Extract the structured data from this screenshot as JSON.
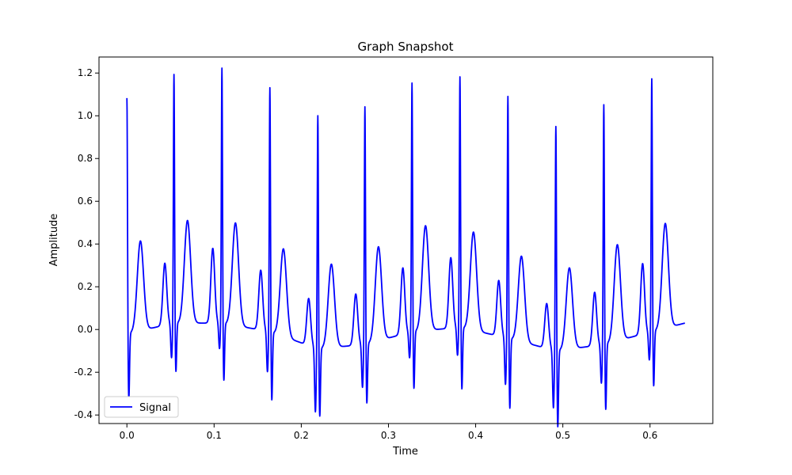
{
  "chart_data": {
    "type": "line",
    "title": "Graph Snapshot",
    "xlabel": "Time",
    "ylabel": "Amplitude",
    "xlim": [
      -0.032,
      0.672
    ],
    "ylim": [
      -0.44,
      1.275
    ],
    "xticks": [
      0.0,
      0.1,
      0.2,
      0.3,
      0.4,
      0.5,
      0.6
    ],
    "yticks": [
      -0.4,
      -0.2,
      0.0,
      0.2,
      0.4,
      0.6,
      0.8,
      1.0,
      1.2
    ],
    "grid": false,
    "legend": {
      "position": "lower-left",
      "entries": [
        "Signal"
      ]
    },
    "series": [
      {
        "name": "Signal",
        "color": "#0000ff",
        "beats": [
          {
            "t": 0.0,
            "r": 1.11,
            "s": -0.31,
            "p": 0.0,
            "q": 0.0,
            "tw": 0.42,
            "base": -0.02
          },
          {
            "t": 0.054,
            "r": 1.17,
            "s": -0.23,
            "p": 0.29,
            "q": -0.16,
            "tw": 0.48,
            "base": 0.03
          },
          {
            "t": 0.109,
            "r": 1.2,
            "s": -0.27,
            "p": 0.35,
            "q": -0.12,
            "tw": 0.48,
            "base": 0.03
          },
          {
            "t": 0.164,
            "r": 1.15,
            "s": -0.32,
            "p": 0.28,
            "q": -0.19,
            "tw": 0.41,
            "base": -0.01
          },
          {
            "t": 0.219,
            "r": 1.1,
            "s": -0.32,
            "p": 0.22,
            "q": -0.3,
            "tw": 0.39,
            "base": -0.09
          },
          {
            "t": 0.273,
            "r": 1.12,
            "s": -0.28,
            "p": 0.24,
            "q": -0.2,
            "tw": 0.44,
            "base": -0.07
          },
          {
            "t": 0.327,
            "r": 1.17,
            "s": -0.27,
            "p": 0.31,
            "q": -0.12,
            "tw": 0.49,
            "base": -0.01
          },
          {
            "t": 0.382,
            "r": 1.18,
            "s": -0.29,
            "p": 0.33,
            "q": -0.13,
            "tw": 0.46,
            "base": 0.01
          },
          {
            "t": 0.437,
            "r": 1.14,
            "s": -0.33,
            "p": 0.26,
            "q": -0.22,
            "tw": 0.4,
            "base": -0.04
          },
          {
            "t": 0.492,
            "r": 1.06,
            "s": -0.36,
            "p": 0.21,
            "q": -0.27,
            "tw": 0.38,
            "base": -0.1
          },
          {
            "t": 0.547,
            "r": 1.13,
            "s": -0.31,
            "p": 0.25,
            "q": -0.18,
            "tw": 0.45,
            "base": -0.07
          },
          {
            "t": 0.602,
            "r": 1.19,
            "s": -0.26,
            "p": 0.33,
            "q": -0.13,
            "tw": 0.49,
            "base": -0.01
          }
        ],
        "x_end": 0.64,
        "y_end": 0.03
      }
    ]
  }
}
